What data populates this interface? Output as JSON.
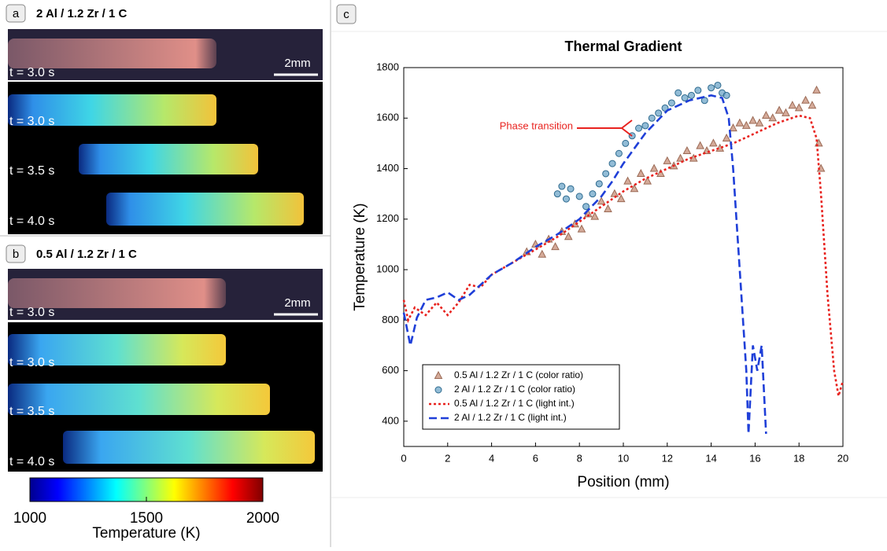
{
  "panels": [
    {
      "label": "a",
      "title": "2 Al / 1.2 Zr / 1 C",
      "frames": [
        "t = 3.0 s",
        "t = 3.0 s",
        "t = 3.5 s",
        "t = 4.0 s"
      ],
      "scale": "2mm"
    },
    {
      "label": "b",
      "title": "0.5 Al / 1.2 Zr / 1 C",
      "frames": [
        "t = 3.0 s",
        "t = 3.0 s",
        "t = 3.5 s",
        "t = 4.0 s"
      ],
      "scale": "2mm"
    }
  ],
  "colorbar": {
    "lim": [
      1000,
      2000
    ],
    "ticks": [
      1000,
      1500,
      2000
    ],
    "label": "Temperature (K)"
  },
  "chart_label": "c",
  "chart_data": {
    "type": "line",
    "title": "Thermal Gradient",
    "xlabel": "Position (mm)",
    "ylabel": "Temperature (K)",
    "xlim": [
      0,
      20
    ],
    "xticks": [
      0,
      2,
      4,
      6,
      8,
      10,
      12,
      14,
      16,
      18,
      20
    ],
    "ylim": [
      300,
      1800
    ],
    "yticks": [
      400,
      600,
      800,
      1000,
      1200,
      1400,
      1600,
      1800
    ],
    "legend": "lower left",
    "annotation": "Phase transition",
    "series": [
      {
        "name": "0.5 Al / 1.2 Zr / 1 C (color ratio)",
        "marker": "triangle",
        "color": "#c9957f",
        "x": [
          5.6,
          6.0,
          6.3,
          6.6,
          6.9,
          7.2,
          7.5,
          7.8,
          8.1,
          8.4,
          8.7,
          9.0,
          9.3,
          9.6,
          9.9,
          10.2,
          10.5,
          10.8,
          11.1,
          11.4,
          11.7,
          12.0,
          12.3,
          12.6,
          12.9,
          13.2,
          13.5,
          13.8,
          14.1,
          14.4,
          14.7,
          15.0,
          15.3,
          15.6,
          15.9,
          16.2,
          16.5,
          16.8,
          17.1,
          17.4,
          17.7,
          18.0,
          18.3,
          18.6,
          18.8,
          18.9,
          19.0
        ],
        "values": [
          1070,
          1100,
          1060,
          1120,
          1090,
          1150,
          1130,
          1180,
          1160,
          1220,
          1210,
          1270,
          1240,
          1300,
          1280,
          1350,
          1320,
          1380,
          1350,
          1400,
          1380,
          1430,
          1410,
          1440,
          1470,
          1440,
          1490,
          1470,
          1500,
          1480,
          1520,
          1560,
          1580,
          1570,
          1590,
          1580,
          1610,
          1600,
          1630,
          1620,
          1650,
          1640,
          1670,
          1650,
          1710,
          1500,
          1400
        ]
      },
      {
        "name": "2 Al / 1.2 Zr / 1 C (color ratio)",
        "marker": "circle",
        "color": "#6ea5c8",
        "x": [
          7.0,
          7.2,
          7.4,
          7.6,
          8.0,
          8.3,
          8.6,
          8.9,
          9.2,
          9.5,
          9.8,
          10.1,
          10.4,
          10.7,
          11.0,
          11.3,
          11.6,
          11.9,
          12.2,
          12.5,
          12.8,
          13.1,
          13.4,
          13.7,
          14.0,
          14.3,
          14.5,
          14.7
        ],
        "values": [
          1300,
          1330,
          1280,
          1320,
          1290,
          1250,
          1300,
          1340,
          1380,
          1420,
          1460,
          1500,
          1530,
          1560,
          1570,
          1600,
          1620,
          1640,
          1660,
          1700,
          1680,
          1690,
          1710,
          1670,
          1720,
          1730,
          1700,
          1690
        ]
      },
      {
        "name": "0.5 Al / 1.2 Zr / 1 C (light int.)",
        "dash": "dotted",
        "color": "#e8231f",
        "x": [
          0,
          0.2,
          0.5,
          1,
          1.5,
          2,
          2.5,
          3,
          3.5,
          4,
          5,
          6,
          7,
          8,
          9,
          10,
          11,
          12,
          13,
          14,
          15,
          16,
          17,
          18,
          18.5,
          18.8,
          19,
          19.3,
          19.6,
          19.8,
          20
        ],
        "values": [
          880,
          800,
          850,
          820,
          870,
          820,
          870,
          940,
          930,
          980,
          1030,
          1080,
          1130,
          1190,
          1250,
          1310,
          1360,
          1400,
          1440,
          1470,
          1500,
          1540,
          1580,
          1610,
          1600,
          1520,
          1300,
          900,
          600,
          500,
          560
        ]
      },
      {
        "name": "2 Al / 1.2 Zr / 1 C (light int.)",
        "dash": "dashed",
        "color": "#1f3fd8",
        "x": [
          0,
          0.3,
          0.6,
          1,
          1.5,
          2,
          2.5,
          3,
          4,
          5,
          6,
          7,
          8,
          9,
          9.5,
          10,
          11,
          12,
          13,
          14,
          14.5,
          14.8,
          15,
          15.3,
          15.6,
          15.7,
          15.9,
          16.1,
          16.3,
          16.5
        ],
        "values": [
          830,
          700,
          810,
          880,
          890,
          910,
          880,
          900,
          980,
          1030,
          1090,
          1140,
          1200,
          1290,
          1350,
          1420,
          1540,
          1630,
          1670,
          1690,
          1680,
          1600,
          1400,
          1000,
          600,
          350,
          700,
          600,
          700,
          350
        ]
      }
    ]
  }
}
